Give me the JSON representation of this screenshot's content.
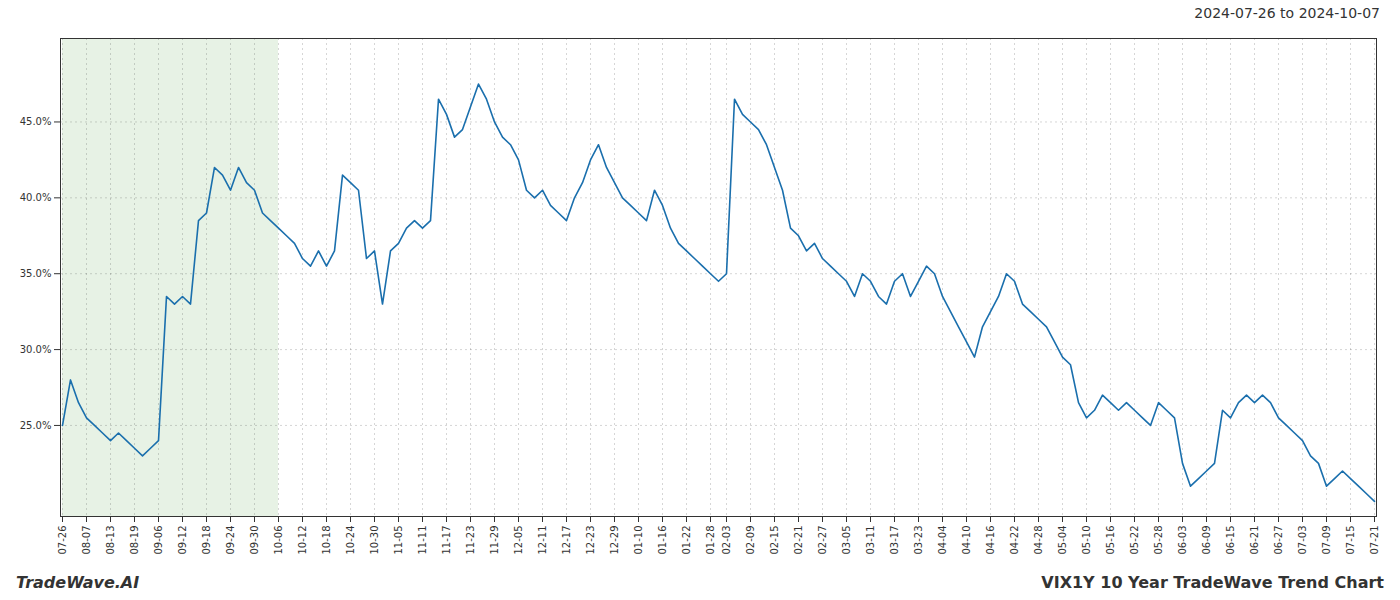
{
  "chart_data": {
    "type": "line",
    "title": "VIX1Y 10 Year TradeWave Trend Chart",
    "subtitle": "2024-07-26 to 2024-10-07",
    "annotation": "TradeWave.AI",
    "categories": [
      "07-26",
      null,
      null,
      "08-07",
      null,
      null,
      "08-13",
      null,
      null,
      "08-19",
      null,
      null,
      "09-06",
      null,
      null,
      "09-12",
      null,
      null,
      "09-18",
      null,
      null,
      "09-24",
      null,
      null,
      "09-30",
      null,
      null,
      "10-06",
      null,
      null,
      "10-12",
      null,
      null,
      "10-18",
      null,
      null,
      "10-24",
      null,
      null,
      "10-30",
      null,
      null,
      "11-05",
      null,
      null,
      "11-11",
      null,
      null,
      "11-17",
      null,
      null,
      "11-23",
      null,
      null,
      "11-29",
      null,
      null,
      "12-05",
      null,
      null,
      "12-11",
      null,
      null,
      "12-17",
      null,
      null,
      "12-23",
      null,
      null,
      "12-29",
      null,
      null,
      "01-10",
      null,
      null,
      "01-16",
      null,
      null,
      "01-22",
      null,
      null,
      "01-28",
      null,
      "02-03",
      null,
      null,
      "02-09",
      null,
      null,
      "02-15",
      null,
      null,
      "02-21",
      null,
      null,
      "02-27",
      null,
      null,
      "03-05",
      null,
      null,
      "03-11",
      null,
      null,
      "03-17",
      null,
      null,
      "03-23",
      null,
      null,
      "04-04",
      null,
      null,
      "04-10",
      null,
      null,
      "04-16",
      null,
      null,
      "04-22",
      null,
      null,
      "04-28",
      null,
      null,
      "05-04",
      null,
      null,
      "05-10",
      null,
      null,
      "05-16",
      null,
      null,
      "05-22",
      null,
      null,
      "05-28",
      null,
      null,
      "06-03",
      null,
      null,
      "06-09",
      null,
      null,
      "06-15",
      null,
      null,
      "06-21",
      null,
      null,
      "06-27",
      null,
      null,
      "07-03",
      null,
      null,
      "07-09",
      null,
      null,
      "07-15",
      null,
      null,
      "07-21"
    ],
    "values": [
      25.0,
      28.0,
      26.5,
      25.5,
      25.0,
      24.5,
      24.0,
      24.5,
      24.0,
      23.5,
      23.0,
      23.5,
      24.0,
      33.5,
      33.0,
      33.5,
      33.0,
      38.5,
      39.0,
      42.0,
      41.5,
      40.5,
      42.0,
      41.0,
      40.5,
      39.0,
      38.5,
      38.0,
      37.5,
      37.0,
      36.0,
      35.5,
      36.5,
      35.5,
      36.5,
      41.5,
      41.0,
      40.5,
      36.0,
      36.5,
      33.0,
      36.5,
      37.0,
      38.0,
      38.5,
      38.0,
      38.5,
      46.5,
      45.5,
      44.0,
      44.5,
      46.0,
      47.5,
      46.5,
      45.0,
      44.0,
      43.5,
      42.5,
      40.5,
      40.0,
      40.5,
      39.5,
      39.0,
      38.5,
      40.0,
      41.0,
      42.5,
      43.5,
      42.0,
      41.0,
      40.0,
      39.5,
      39.0,
      38.5,
      40.5,
      39.5,
      38.0,
      37.0,
      36.5,
      36.0,
      35.5,
      35.0,
      34.5,
      35.0,
      46.5,
      45.5,
      45.0,
      44.5,
      43.5,
      42.0,
      40.5,
      38.0,
      37.5,
      36.5,
      37.0,
      36.0,
      35.5,
      35.0,
      34.5,
      33.5,
      35.0,
      34.5,
      33.5,
      33.0,
      34.5,
      35.0,
      33.5,
      34.5,
      35.5,
      35.0,
      33.5,
      32.5,
      31.5,
      30.5,
      29.5,
      31.5,
      32.5,
      33.5,
      35.0,
      34.5,
      33.0,
      32.5,
      32.0,
      31.5,
      30.5,
      29.5,
      29.0,
      26.5,
      25.5,
      26.0,
      27.0,
      26.5,
      26.0,
      26.5,
      26.0,
      25.5,
      25.0,
      26.5,
      26.0,
      25.5,
      22.5,
      21.0,
      21.5,
      22.0,
      22.5,
      26.0,
      25.5,
      26.5,
      27.0,
      26.5,
      27.0,
      26.5,
      25.5,
      25.0,
      24.5,
      24.0,
      23.0,
      22.5,
      21.0,
      21.5,
      22.0,
      21.5,
      21.0,
      20.5,
      20.0
    ],
    "color": "#1a6fad",
    "ylim": [
      19.0,
      50.5
    ],
    "yticks": [
      {
        "value": 25.0,
        "label": "25.0%"
      },
      {
        "value": 30.0,
        "label": "30.0%"
      },
      {
        "value": 35.0,
        "label": "35.0%"
      },
      {
        "value": 40.0,
        "label": "40.0%"
      },
      {
        "value": 45.0,
        "label": "45.0%"
      }
    ],
    "grid": true,
    "shaded_region": {
      "from": "07-26",
      "to": "10-06",
      "color": "#d4e8d0"
    }
  }
}
